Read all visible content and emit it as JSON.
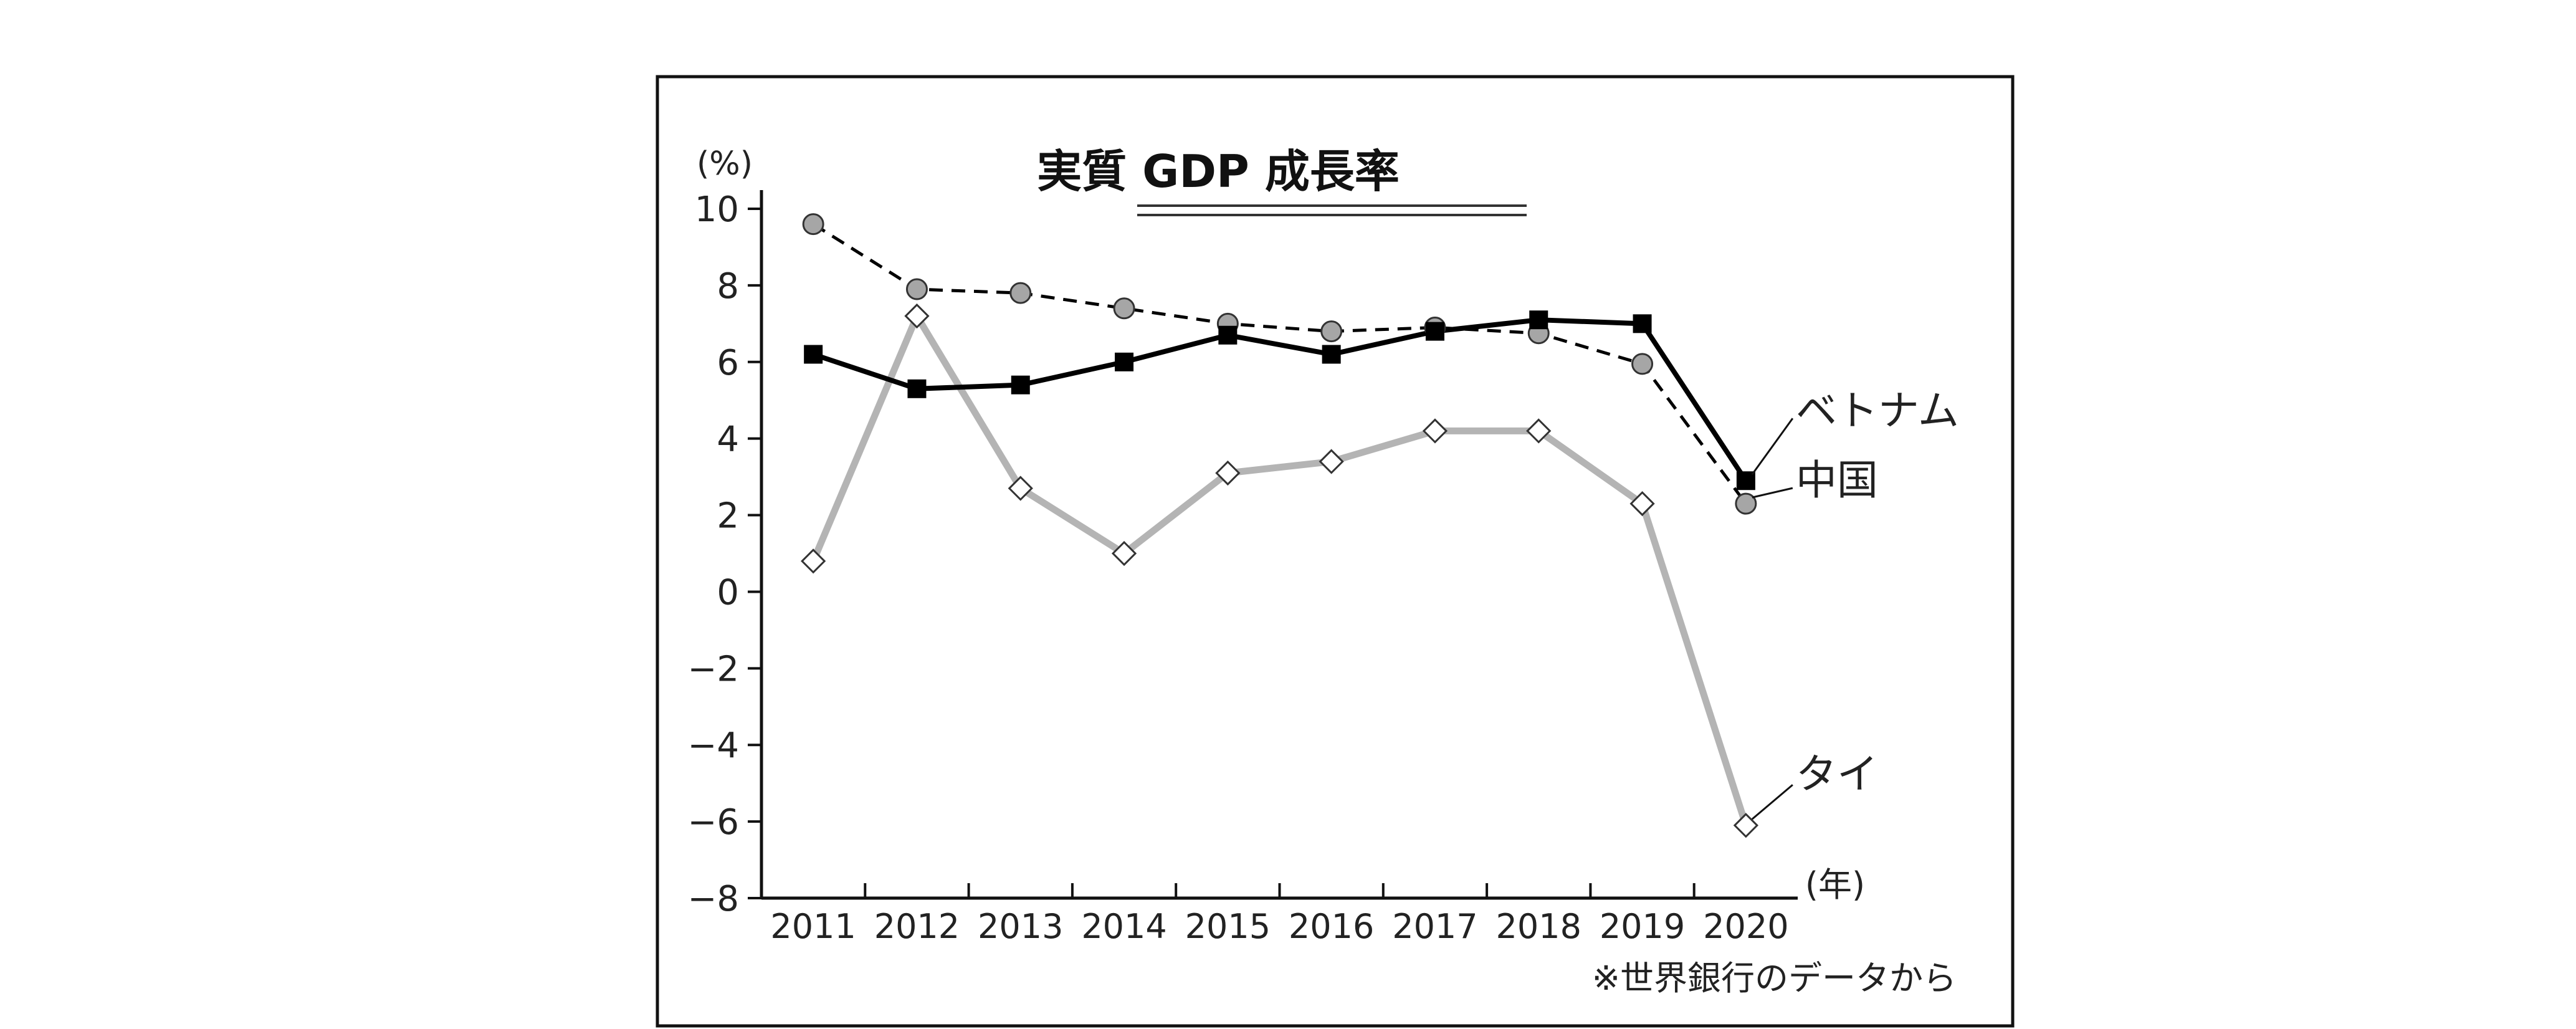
{
  "chart_data": {
    "type": "line",
    "title": "実質 GDP 成長率",
    "ylabel": "(%)",
    "xlabel": "(年)",
    "note": "※世界銀行のデータから",
    "categories": [
      "2011",
      "2012",
      "2013",
      "2014",
      "2015",
      "2016",
      "2017",
      "2018",
      "2019",
      "2020"
    ],
    "ylim": [
      -8,
      10
    ],
    "yticks": [
      10,
      8,
      6,
      4,
      2,
      0,
      -2,
      -4,
      -6,
      -8
    ],
    "ytick_labels": [
      "10",
      "8",
      "6",
      "4",
      "2",
      "0",
      "−2",
      "−4",
      "−6",
      "−8"
    ],
    "grid": false,
    "series": [
      {
        "name": "中国",
        "values": [
          9.6,
          7.9,
          7.8,
          7.4,
          7.0,
          6.8,
          6.9,
          6.75,
          5.95,
          2.3
        ],
        "style": "dashed",
        "color": "#000000",
        "marker": "circle",
        "marker_fill": "#a6a6a6"
      },
      {
        "name": "ベトナム",
        "values": [
          6.2,
          5.3,
          5.4,
          6.0,
          6.7,
          6.2,
          6.8,
          7.1,
          7.0,
          2.9
        ],
        "style": "solid",
        "color": "#000000",
        "marker": "square",
        "marker_fill": "#000000"
      },
      {
        "name": "タイ",
        "values": [
          0.8,
          7.2,
          2.7,
          1.0,
          3.1,
          3.4,
          4.2,
          4.2,
          2.3,
          -6.1
        ],
        "style": "solid",
        "color": "#b4b4b4",
        "marker": "diamond",
        "marker_fill": "#ffffff"
      }
    ]
  }
}
